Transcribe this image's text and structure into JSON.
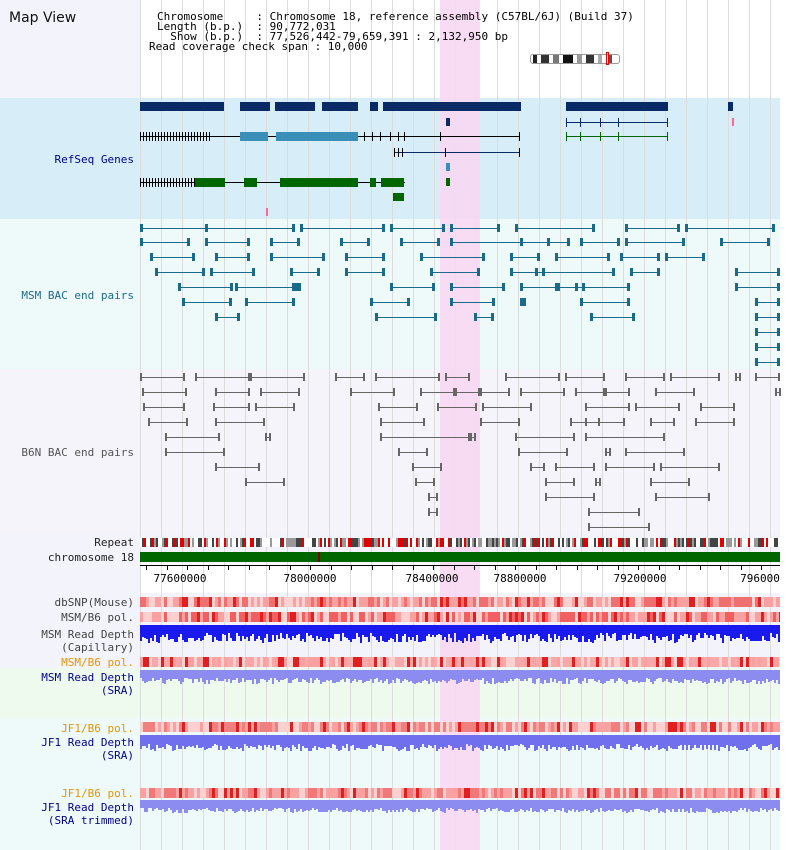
{
  "title": "Map View",
  "info": [
    "Chromosome     : Chromosome 18, reference assembly (C57BL/6J) (Build 37)",
    "Length (b.p.)  : 90,772,031",
    "  Show (b.p.)  : 77,526,442-79,659,391 : 2,132,950 bp",
    "Read coverage check span : 10,000"
  ],
  "tracks": {
    "refseq": "RefSeq Genes",
    "msm_bac": "MSM BAC end pairs",
    "b6n_bac": "B6N BAC end pairs",
    "repeat": "Repeat",
    "chromosome": "chromosome 18",
    "dbsnp": "dbSNP(Mouse)",
    "msm_b6_pol": "MSM/B6 pol.",
    "msm_read_depth_cap_1": "MSM Read Depth",
    "msm_read_depth_cap_2": "(Capillary)",
    "msm_b6_pol_2": "MSM/B6 pol.",
    "msm_read_depth_sra_1": "MSM Read Depth",
    "msm_read_depth_sra_2": "(SRA)",
    "jf1_b6_pol": "JF1/B6 pol.",
    "jf1_read_depth_sra_1": "JF1 Read Depth",
    "jf1_read_depth_sra_2": "(SRA)",
    "jf1_b6_pol_2": "JF1/B6 pol.",
    "jf1_read_depth_tr_1": "JF1 Read Depth",
    "jf1_read_depth_tr_2": "(SRA trimmed)"
  },
  "ruler": {
    "ticks": [
      "77600000",
      "78000000",
      "78400000",
      "78800000",
      "79200000",
      "796000"
    ]
  },
  "colors": {
    "refseq_bg": "#d7eef8",
    "bac_bg": "#eefafa",
    "b6n_bg": "#f4f4fa",
    "highlight": "#f7d8f2",
    "gene_dark": "#0a2a66",
    "gene_mid": "#3a8fb8",
    "gene_green": "#006600",
    "msm_bac": "#1a6b8a",
    "b6n_bac": "#666666",
    "chrom": "#006600",
    "depth_blue": "#1a1aee",
    "depth_light": "#7a7af0",
    "pol_red": "#f05050",
    "label_blue": "#00008b",
    "label_orange": "#e69500",
    "label_teal": "#1a6b8a",
    "label_gray": "#555555"
  }
}
